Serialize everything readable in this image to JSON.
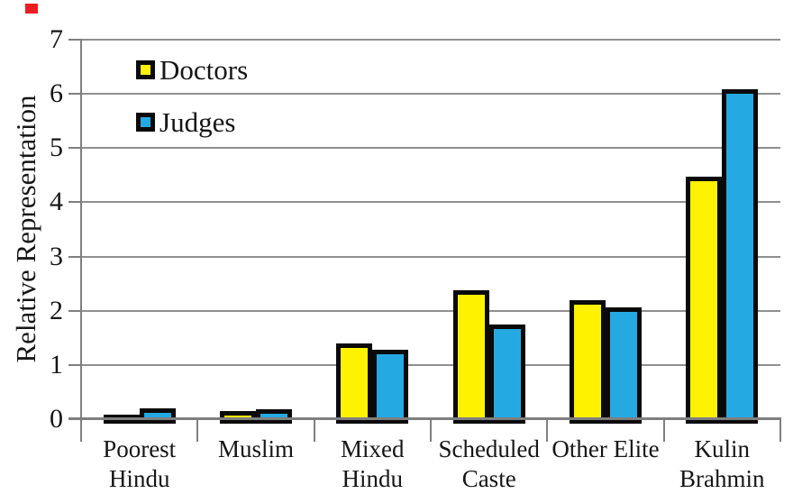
{
  "corner_mark": {
    "color": "#ED1C24"
  },
  "chart_data": {
    "type": "bar",
    "title": "",
    "xlabel": "",
    "ylabel": "Relative Representation",
    "ylim": [
      0,
      7
    ],
    "yticks": [
      0,
      1,
      2,
      3,
      4,
      5,
      6,
      7
    ],
    "grid": true,
    "legend_position": "top-left",
    "categories": [
      "Poorest Hindu",
      "Muslim",
      "Mixed Hindu",
      "Scheduled Caste",
      "Other Elite",
      "Kulin Brahmin"
    ],
    "category_label_lines": [
      [
        "Poorest",
        "Hindu"
      ],
      [
        "Muslim"
      ],
      [
        "Mixed",
        "Hindu"
      ],
      [
        "Scheduled",
        "Caste"
      ],
      [
        "Other Elite"
      ],
      [
        "Kulin",
        "Brahmin"
      ]
    ],
    "series": [
      {
        "name": "Doctors",
        "color": "#FEF200",
        "values": [
          0.08,
          0.15,
          1.4,
          2.38,
          2.2,
          4.47
        ]
      },
      {
        "name": "Judges",
        "color": "#25A9E3",
        "values": [
          0.2,
          0.18,
          1.28,
          1.75,
          2.07,
          6.08
        ]
      }
    ],
    "bar_border_color": "#0a0a0a",
    "gridline_color": "#8f8f8f",
    "axis_color": "#7f7f7f",
    "text_color": "#161616"
  }
}
